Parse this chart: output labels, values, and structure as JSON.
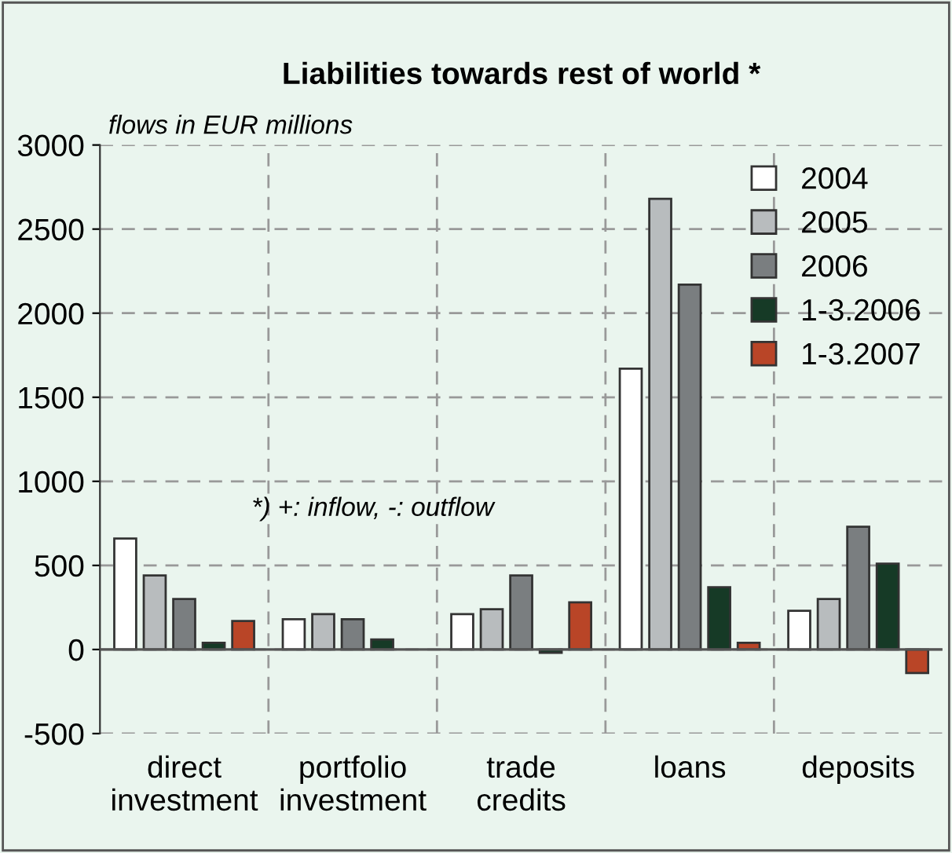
{
  "chart_data": {
    "type": "bar",
    "title": "Liabilities towards rest of world *",
    "ylabel": "flows in EUR millions",
    "annotations": [
      "*) +: inflow, -: outflow"
    ],
    "categories": [
      "direct\ninvestment",
      "portfolio\ninvestment",
      "trade\ncredits",
      "loans",
      "deposits"
    ],
    "series": [
      {
        "name": "2004",
        "color": "#ffffff",
        "values": [
          660,
          180,
          210,
          1670,
          230
        ]
      },
      {
        "name": "2005",
        "color": "#b8bcbe",
        "values": [
          440,
          210,
          240,
          2680,
          300
        ]
      },
      {
        "name": "2006",
        "color": "#7a7e80",
        "values": [
          300,
          180,
          440,
          2170,
          730
        ]
      },
      {
        "name": "1-3.2006",
        "color": "#163a26",
        "values": [
          40,
          60,
          -20,
          370,
          510
        ]
      },
      {
        "name": "1-3.2007",
        "color": "#b94527",
        "values": [
          170,
          null,
          280,
          40,
          -140
        ]
      }
    ],
    "ylim": [
      -500,
      3000
    ],
    "yticks": [
      -500,
      0,
      500,
      1000,
      1500,
      2000,
      2500,
      3000
    ],
    "grid": true,
    "legend": "top right"
  }
}
